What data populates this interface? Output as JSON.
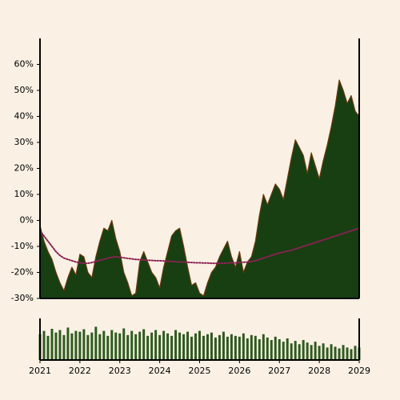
{
  "chart_data": [
    {
      "type": "area",
      "x": [
        2021.0,
        2021.1,
        2021.2,
        2021.3,
        2021.4,
        2021.5,
        2021.6,
        2021.7,
        2021.8,
        2021.9,
        2022.0,
        2022.1,
        2022.2,
        2022.3,
        2022.4,
        2022.5,
        2022.6,
        2022.7,
        2022.8,
        2022.9,
        2023.0,
        2023.1,
        2023.2,
        2023.3,
        2023.4,
        2023.5,
        2023.6,
        2023.7,
        2023.8,
        2023.9,
        2024.0,
        2024.1,
        2024.2,
        2024.3,
        2024.4,
        2024.5,
        2024.6,
        2024.7,
        2024.8,
        2024.9,
        2025.0,
        2025.1,
        2025.2,
        2025.3,
        2025.4,
        2025.5,
        2025.6,
        2025.7,
        2025.8,
        2025.9,
        2026.0,
        2026.1,
        2026.2,
        2026.3,
        2026.4,
        2026.5,
        2026.6,
        2026.7,
        2026.8,
        2026.9,
        2027.0,
        2027.1,
        2027.2,
        2027.3,
        2027.4,
        2027.5,
        2027.6,
        2027.7,
        2027.8,
        2027.9,
        2028.0,
        2028.1,
        2028.2,
        2028.3,
        2028.4,
        2028.5,
        2028.6,
        2028.7,
        2028.8,
        2028.9,
        2029.0
      ],
      "series": [
        {
          "color": "#173f12",
          "edge": "#6b3a10",
          "values": [
            -2,
            -8,
            -12,
            -15,
            -20,
            -24,
            -27,
            -22,
            -18,
            -21,
            -13,
            -14,
            -20,
            -22,
            -14,
            -8,
            -3,
            -4,
            0,
            -7,
            -12,
            -20,
            -24,
            -29,
            -28,
            -16,
            -12,
            -16,
            -20,
            -22,
            -26,
            -18,
            -12,
            -6,
            -4,
            -3,
            -10,
            -18,
            -25,
            -24,
            -28,
            -29,
            -24,
            -20,
            -18,
            -14,
            -11,
            -8,
            -14,
            -18,
            -12,
            -20,
            -16,
            -14,
            -8,
            2,
            10,
            6,
            10,
            14,
            12,
            8,
            16,
            24,
            31,
            28,
            25,
            18,
            26,
            21,
            16,
            23,
            29,
            36,
            44,
            54,
            50,
            45,
            48,
            42,
            40
          ]
        },
        {
          "color": "#8b2252",
          "style": "dotted",
          "values": [
            -4,
            -6,
            -8,
            -10,
            -12,
            -13.5,
            -14.5,
            -15,
            -15.5,
            -16,
            -16.3,
            -16.5,
            -16.5,
            -16.2,
            -15.8,
            -15.3,
            -15,
            -14.5,
            -14.2,
            -14,
            -14.2,
            -14.4,
            -14.6,
            -14.8,
            -15,
            -15.1,
            -15.2,
            -15.3,
            -15.4,
            -15.5,
            -15.5,
            -15.6,
            -15.7,
            -15.8,
            -15.9,
            -16,
            -16,
            -16.1,
            -16.2,
            -16.3,
            -16.3,
            -16.4,
            -16.4,
            -16.5,
            -16.5,
            -16.5,
            -16.5,
            -16.4,
            -16.3,
            -16.3,
            -16.2,
            -16.1,
            -16,
            -15.8,
            -15.5,
            -15,
            -14.5,
            -14,
            -13.5,
            -13,
            -12.5,
            -12.2,
            -11.8,
            -11.5,
            -11,
            -10.5,
            -10,
            -9.5,
            -9,
            -8.5,
            -8,
            -7.5,
            -7,
            -6.5,
            -6,
            -5.5,
            -5,
            -4.5,
            -4,
            -3.5,
            -3
          ]
        }
      ],
      "xlim": [
        2021,
        2029
      ],
      "ylim": [
        -30,
        70
      ],
      "yticks": [
        {
          "value": -30,
          "label": "-30%"
        },
        {
          "value": -20,
          "label": "-20%"
        },
        {
          "value": -10,
          "label": "-10%"
        },
        {
          "value": 0,
          "label": "0%"
        },
        {
          "value": 10,
          "label": "10%"
        },
        {
          "value": 20,
          "label": "20%"
        },
        {
          "value": 30,
          "label": "30%"
        },
        {
          "value": 40,
          "label": "40%"
        },
        {
          "value": 50,
          "label": "50%"
        },
        {
          "value": 60,
          "label": "60%"
        }
      ]
    },
    {
      "type": "bar",
      "x": [
        2021.0,
        2021.1,
        2021.2,
        2021.3,
        2021.4,
        2021.5,
        2021.6,
        2021.7,
        2021.8,
        2021.9,
        2022.0,
        2022.1,
        2022.2,
        2022.3,
        2022.4,
        2022.5,
        2022.6,
        2022.7,
        2022.8,
        2022.9,
        2023.0,
        2023.1,
        2023.2,
        2023.3,
        2023.4,
        2023.5,
        2023.6,
        2023.7,
        2023.8,
        2023.9,
        2024.0,
        2024.1,
        2024.2,
        2024.3,
        2024.4,
        2024.5,
        2024.6,
        2024.7,
        2024.8,
        2024.9,
        2025.0,
        2025.1,
        2025.2,
        2025.3,
        2025.4,
        2025.5,
        2025.6,
        2025.7,
        2025.8,
        2025.9,
        2026.0,
        2026.1,
        2026.2,
        2026.3,
        2026.4,
        2026.5,
        2026.6,
        2026.7,
        2026.8,
        2026.9,
        2027.0,
        2027.1,
        2027.2,
        2027.3,
        2027.4,
        2027.5,
        2027.6,
        2027.7,
        2027.8,
        2027.9,
        2028.0,
        2028.1,
        2028.2,
        2028.3,
        2028.4,
        2028.5,
        2028.6,
        2028.7,
        2028.8,
        2028.9,
        2029.0
      ],
      "values": [
        62,
        70,
        58,
        75,
        66,
        72,
        60,
        78,
        64,
        70,
        68,
        74,
        60,
        66,
        80,
        62,
        70,
        58,
        72,
        66,
        64,
        76,
        60,
        70,
        62,
        68,
        74,
        58,
        66,
        72,
        60,
        70,
        64,
        58,
        72,
        66,
        62,
        68,
        56,
        64,
        70,
        58,
        62,
        66,
        54,
        60,
        68,
        56,
        62,
        58,
        56,
        64,
        52,
        60,
        58,
        50,
        62,
        54,
        48,
        56,
        50,
        44,
        52,
        40,
        46,
        38,
        48,
        42,
        36,
        44,
        34,
        40,
        30,
        38,
        32,
        28,
        36,
        30,
        26,
        34,
        30
      ],
      "color": "#2d5a1e",
      "xlim": [
        2021,
        2029
      ],
      "ylim": [
        0,
        100
      ],
      "xticks": [
        2021,
        2022,
        2023,
        2024,
        2025,
        2026,
        2027,
        2028,
        2029
      ]
    }
  ]
}
